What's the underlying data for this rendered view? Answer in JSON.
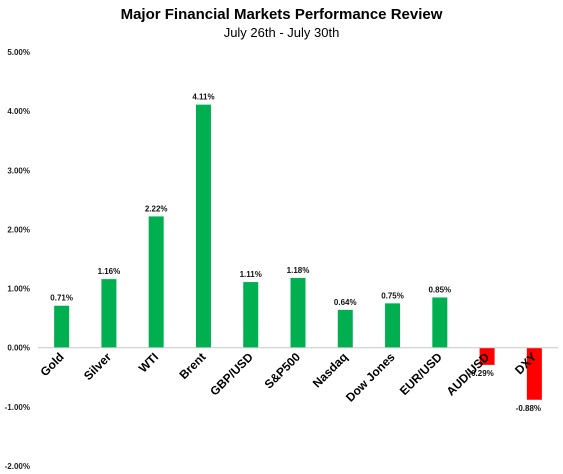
{
  "chart_data": {
    "type": "bar",
    "title": "Major Financial Markets Performance Review",
    "subtitle": "July 26th - July 30th",
    "categories": [
      "Gold",
      "Silver",
      "WTI",
      "Brent",
      "GBP/USD",
      "S&P500",
      "Nasdaq",
      "Dow Jones",
      "EUR/USD",
      "AUD/USD",
      "DXY"
    ],
    "values": [
      0.71,
      1.16,
      2.22,
      4.11,
      1.11,
      1.18,
      0.64,
      0.75,
      0.85,
      -0.29,
      -0.88
    ],
    "data_labels": [
      "0.71%",
      "1.16%",
      "2.22%",
      "4.11%",
      "1.11%",
      "1.18%",
      "0.64%",
      "0.75%",
      "0.85%",
      "-0.29%",
      "-0.88%"
    ],
    "y_ticks": [
      5,
      4,
      3,
      2,
      1,
      0,
      -1,
      -2
    ],
    "y_tick_labels": [
      "5.00%",
      "4.00%",
      "3.00%",
      "2.00%",
      "1.00%",
      "0.00%",
      "-1.00%",
      "-2.00%"
    ],
    "ylim": [
      -2,
      5
    ],
    "xlabel": "",
    "ylabel": "",
    "grid": false,
    "colors": {
      "positive": "#00b050",
      "negative": "#ff0000"
    }
  }
}
